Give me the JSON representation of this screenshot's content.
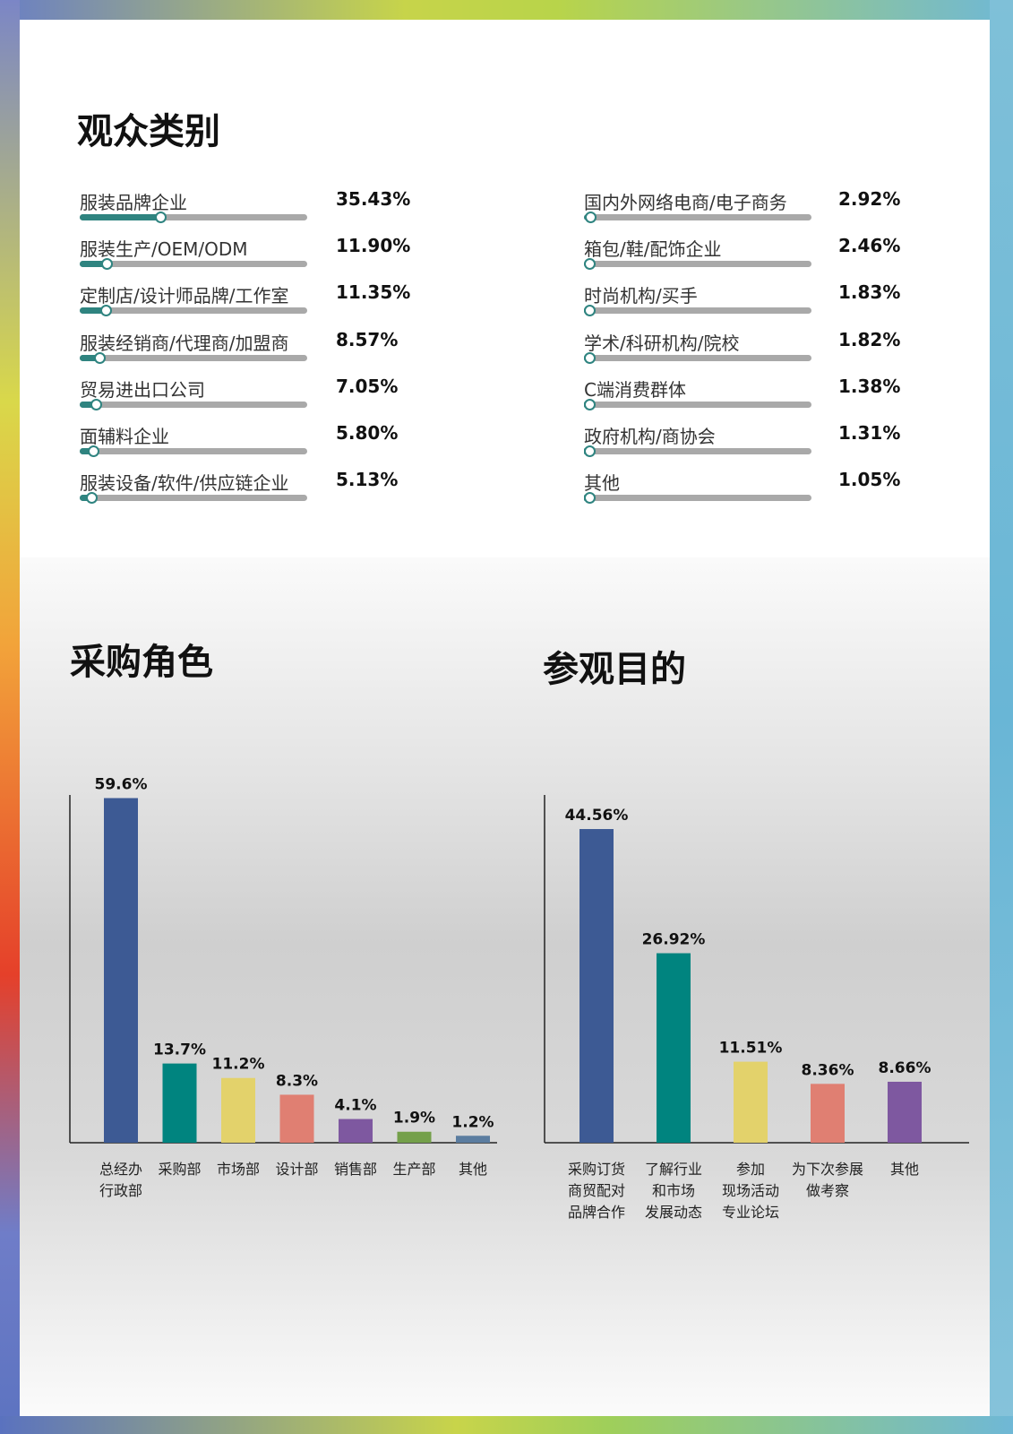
{
  "sections": {
    "audience_title": "观众类别",
    "role_title": "采购角色",
    "purpose_title": "参观目的"
  },
  "audience": {
    "left": [
      {
        "label": "服装品牌企业",
        "pct": "35.43%",
        "value": 35.43
      },
      {
        "label": "服装生产/OEM/ODM",
        "pct": "11.90%",
        "value": 11.9
      },
      {
        "label": "定制店/设计师品牌/工作室",
        "pct": "11.35%",
        "value": 11.35
      },
      {
        "label": "服装经销商/代理商/加盟商",
        "pct": "8.57%",
        "value": 8.57
      },
      {
        "label": "贸易进出口公司",
        "pct": "7.05%",
        "value": 7.05
      },
      {
        "label": "面辅料企业",
        "pct": "5.80%",
        "value": 5.8
      },
      {
        "label": "服装设备/软件/供应链企业",
        "pct": "5.13%",
        "value": 5.13
      }
    ],
    "right": [
      {
        "label": "国内外网络电商/电子商务",
        "pct": "2.92%",
        "value": 2.92
      },
      {
        "label": "箱包/鞋/配饰企业",
        "pct": "2.46%",
        "value": 2.46
      },
      {
        "label": "时尚机构/买手",
        "pct": "1.83%",
        "value": 1.83
      },
      {
        "label": "学术/科研机构/院校",
        "pct": "1.82%",
        "value": 1.82
      },
      {
        "label": "C端消费群体",
        "pct": "1.38%",
        "value": 1.38
      },
      {
        "label": "政府机构/商协会",
        "pct": "1.31%",
        "value": 1.31
      },
      {
        "label": "其他",
        "pct": "1.05%",
        "value": 1.05
      }
    ]
  },
  "colors": {
    "progress_fill": "#2f8480",
    "progress_track": "#a9a9a9",
    "navy": "#3d5a94",
    "teal": "#00847f",
    "yellow": "#e3d26b",
    "salmon": "#e07f72",
    "purple": "#7e58a0",
    "olive": "#74a04a",
    "slate": "#5b7da0"
  },
  "chart_data": [
    {
      "type": "bar",
      "title": "采购角色",
      "categories": [
        [
          "总经办",
          "行政部"
        ],
        [
          "采购部"
        ],
        [
          "市场部"
        ],
        [
          "设计部"
        ],
        [
          "销售部"
        ],
        [
          "生产部"
        ],
        [
          "其他"
        ]
      ],
      "values": [
        59.6,
        13.7,
        11.2,
        8.3,
        4.1,
        1.9,
        1.2
      ],
      "labels": [
        "59.6%",
        "13.7%",
        "11.2%",
        "8.3%",
        "4.1%",
        "1.9%",
        "1.2%"
      ],
      "colors": [
        "#3d5a94",
        "#00847f",
        "#e3d26b",
        "#e07f72",
        "#7e58a0",
        "#74a04a",
        "#5b7da0"
      ],
      "ylim": [
        0,
        62
      ]
    },
    {
      "type": "bar",
      "title": "参观目的",
      "categories": [
        [
          "采购订货",
          "商贸配对",
          "品牌合作"
        ],
        [
          "了解行业",
          "和市场",
          "发展动态"
        ],
        [
          "参加",
          "现场活动",
          "专业论坛"
        ],
        [
          "为下次参展",
          "做考察"
        ],
        [
          "其他"
        ]
      ],
      "values": [
        44.56,
        26.92,
        11.51,
        8.36,
        8.66
      ],
      "labels": [
        "44.56%",
        "26.92%",
        "11.51%",
        "8.36%",
        "8.66%"
      ],
      "colors": [
        "#3d5a94",
        "#00847f",
        "#e3d26b",
        "#e07f72",
        "#7e58a0"
      ],
      "ylim": [
        0,
        48
      ]
    }
  ]
}
